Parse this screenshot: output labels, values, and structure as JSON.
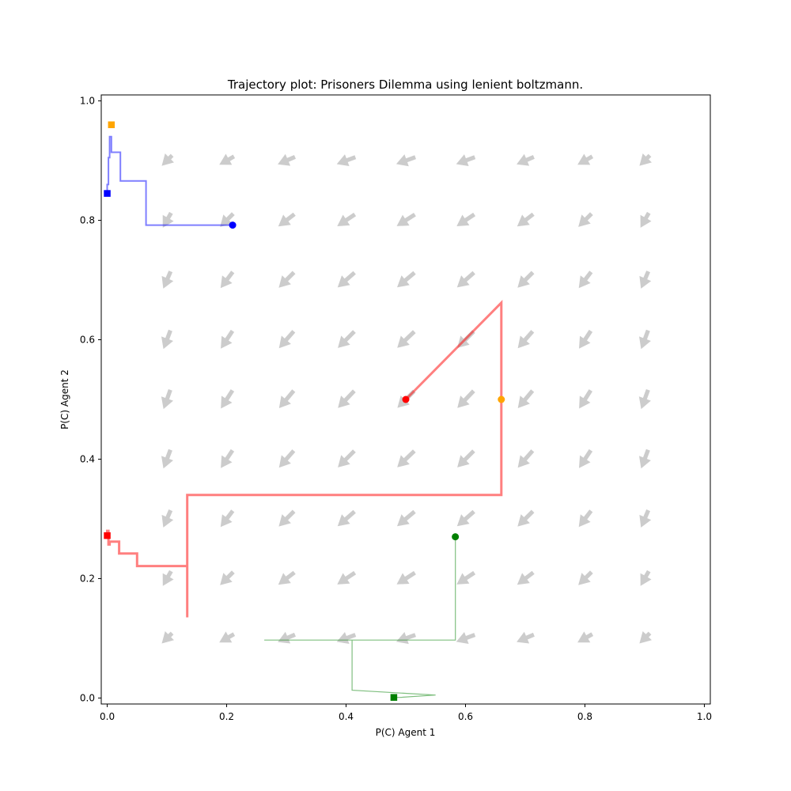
{
  "chart_data": {
    "type": "line",
    "title": "Trajectory plot: Prisoners Dilemma using lenient boltzmann.",
    "xlabel": "P(C) Agent 1",
    "ylabel": "P(C) Agent 2",
    "xlim": [
      -0.01,
      1.01
    ],
    "ylim": [
      -0.01,
      1.01
    ],
    "xticks": [
      {
        "value": 0.0,
        "label": "0.0"
      },
      {
        "value": 0.2,
        "label": "0.2"
      },
      {
        "value": 0.4,
        "label": "0.4"
      },
      {
        "value": 0.6,
        "label": "0.6"
      },
      {
        "value": 0.8,
        "label": "0.8"
      },
      {
        "value": 1.0,
        "label": "1.0"
      }
    ],
    "yticks": [
      {
        "value": 0.0,
        "label": "0.0"
      },
      {
        "value": 0.2,
        "label": "0.2"
      },
      {
        "value": 0.4,
        "label": "0.4"
      },
      {
        "value": 0.6,
        "label": "0.6"
      },
      {
        "value": 0.8,
        "label": "0.8"
      },
      {
        "value": 1.0,
        "label": "1.0"
      }
    ],
    "grid": false,
    "quiver": {
      "color": "#cccccc",
      "grid_x": [
        0.1,
        0.2,
        0.3,
        0.4,
        0.5,
        0.6,
        0.7,
        0.8,
        0.9
      ],
      "grid_y": [
        0.1,
        0.2,
        0.3,
        0.4,
        0.5,
        0.6,
        0.7,
        0.8,
        0.9
      ]
    },
    "series": [
      {
        "color": "#0000ff",
        "line_alpha": 0.5,
        "line_width": 2,
        "points": [
          [
            0.21,
            0.792
          ],
          [
            0.065,
            0.792
          ],
          [
            0.065,
            0.866
          ],
          [
            0.022,
            0.866
          ],
          [
            0.022,
            0.914
          ],
          [
            0.007,
            0.914
          ],
          [
            0.007,
            0.94
          ],
          [
            0.004,
            0.94
          ],
          [
            0.004,
            0.905
          ],
          [
            0.002,
            0.905
          ],
          [
            0.002,
            0.86
          ],
          [
            0.0,
            0.86
          ],
          [
            0.0,
            0.845
          ]
        ],
        "start": [
          0.21,
          0.792
        ],
        "end": [
          0.0,
          0.845
        ],
        "start_color": "#0000ff",
        "end_color": "#0000ff"
      },
      {
        "color": "#ff0000",
        "line_alpha": 0.5,
        "line_width": 3,
        "points": [
          [
            0.5,
            0.5
          ],
          [
            0.66,
            0.662
          ],
          [
            0.66,
            0.34
          ],
          [
            0.134,
            0.34
          ],
          [
            0.134,
            0.135
          ],
          [
            0.134,
            0.221
          ],
          [
            0.05,
            0.221
          ],
          [
            0.05,
            0.242
          ],
          [
            0.02,
            0.242
          ],
          [
            0.02,
            0.262
          ],
          [
            0.004,
            0.262
          ],
          [
            0.004,
            0.257
          ],
          [
            0.002,
            0.257
          ],
          [
            0.002,
            0.28
          ],
          [
            0.0,
            0.28
          ],
          [
            0.0,
            0.272
          ]
        ],
        "start": [
          0.5,
          0.5
        ],
        "end": [
          0.0,
          0.272
        ],
        "start_color": "#ff0000",
        "end_color": "#ff0000"
      },
      {
        "color": "#ffa500",
        "line_alpha": 0.5,
        "line_width": 2,
        "points": [],
        "start": [
          0.66,
          0.5
        ],
        "end": [
          0.007,
          0.96
        ],
        "start_color": "#ffa500",
        "end_color": "#ffa500"
      },
      {
        "color": "#008000",
        "line_alpha": 0.5,
        "line_width": 1.2,
        "points": [
          [
            0.583,
            0.27
          ],
          [
            0.583,
            0.097
          ],
          [
            0.263,
            0.097
          ],
          [
            0.41,
            0.097
          ],
          [
            0.41,
            0.013
          ],
          [
            0.55,
            0.005
          ],
          [
            0.49,
            0.001
          ],
          [
            0.48,
            0.001
          ]
        ],
        "start": [
          0.583,
          0.27
        ],
        "end": [
          0.48,
          0.001
        ],
        "start_color": "#008000",
        "end_color": "#008000"
      }
    ]
  }
}
